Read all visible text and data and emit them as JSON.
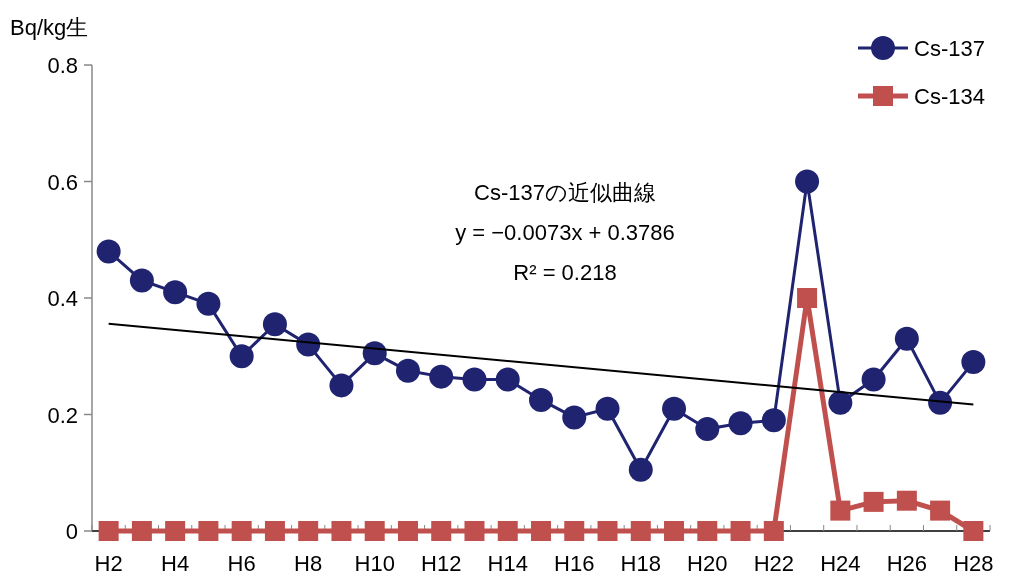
{
  "chart_data": {
    "type": "line",
    "ylabel": "Bq/kg生",
    "categories": [
      "H2",
      null,
      "H4",
      null,
      "H6",
      null,
      "H8",
      null,
      "H10",
      null,
      "H12",
      null,
      "H14",
      null,
      "H16",
      null,
      "H18",
      null,
      "H20",
      null,
      "H22",
      null,
      "H24",
      null,
      "H26",
      null,
      "H28"
    ],
    "series": [
      {
        "name": "Cs-137",
        "color": "#1f2370",
        "marker": "circle",
        "values": [
          0.48,
          0.43,
          0.41,
          0.39,
          0.3,
          0.355,
          0.32,
          0.25,
          0.305,
          0.275,
          0.265,
          0.26,
          0.26,
          0.225,
          0.195,
          0.21,
          0.105,
          0.21,
          0.175,
          0.185,
          0.19,
          0.6,
          0.22,
          0.26,
          0.33,
          0.22,
          0.29
        ]
      },
      {
        "name": "Cs-134",
        "color": "#c0504d",
        "marker": "square",
        "values": [
          0,
          0,
          0,
          0,
          0,
          0,
          0,
          0,
          0,
          0,
          0,
          0,
          0,
          0,
          0,
          0,
          0,
          0,
          0,
          0,
          0,
          0.4,
          0.035,
          0.05,
          0.052,
          0.035,
          0
        ]
      },
      {
        "type": "line",
        "color": "#000000",
        "marker": "none",
        "x": [
          "H2",
          "H28"
        ],
        "values": [
          0.356,
          0.217
        ]
      }
    ],
    "ylim": [
      0,
      0.8
    ],
    "yticks": [
      0,
      0.2,
      0.4,
      0.6,
      0.8
    ],
    "grid": false,
    "legend": "top right",
    "annotations": [
      "Cs-137の近似曲線",
      "y = −0.0073x + 0.3786",
      "R² = 0.218"
    ]
  }
}
